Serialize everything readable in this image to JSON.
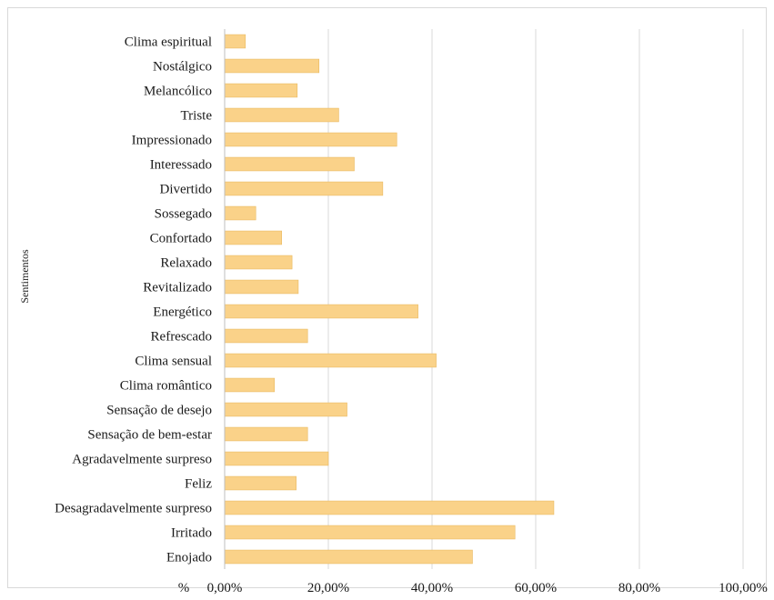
{
  "chart_data": {
    "type": "bar",
    "orientation": "horizontal",
    "title": "",
    "ylabel": "Sentimentos",
    "xlabel": "%",
    "xlim": [
      0,
      100
    ],
    "x_ticks": [
      0,
      20,
      40,
      60,
      80,
      100
    ],
    "x_tick_labels": [
      "0,00%",
      "20,00%",
      "40,00%",
      "60,00%",
      "80,00%",
      "100,00%"
    ],
    "grid": true,
    "legend": "none",
    "bar_color": "#FAD289",
    "bar_edge_color": "#E9B960",
    "categories": [
      "Clima espiritual",
      "Nostálgico",
      "Melancólico",
      "Triste",
      "Impressionado",
      "Interessado",
      "Divertido",
      "Sossegado",
      "Confortado",
      "Relaxado",
      "Revitalizado",
      "Energético",
      "Refrescado",
      "Clima sensual",
      "Clima romântico",
      "Sensação de desejo",
      "Sensação de bem-estar",
      "Agradavelmente surpreso",
      "Feliz",
      "Desagradavelmente surpreso",
      "Irritado",
      "Enojado"
    ],
    "values": [
      4,
      18.2,
      14,
      22,
      33.2,
      25,
      30.5,
      6,
      11,
      13,
      14.2,
      37.3,
      16,
      40.8,
      9.6,
      23.6,
      16,
      20,
      13.8,
      63.5,
      56,
      47.8
    ]
  }
}
